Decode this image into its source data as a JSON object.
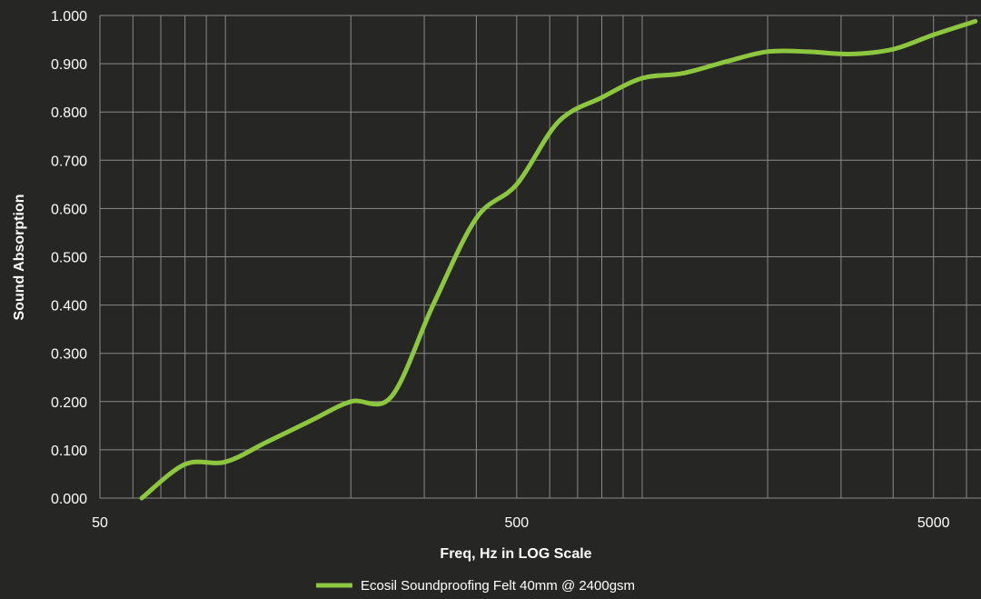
{
  "chart_data": {
    "type": "line",
    "title": "",
    "xlabel": "Freq, Hz in LOG Scale",
    "ylabel": "Sound Absorption",
    "x_scale": "log",
    "xlim": [
      50,
      6500
    ],
    "ylim": [
      0,
      1
    ],
    "x_tick_labels": [
      "50",
      "500",
      "5000"
    ],
    "y_tick_labels": [
      "0.000",
      "0.100",
      "0.200",
      "0.300",
      "0.400",
      "0.500",
      "0.600",
      "0.700",
      "0.800",
      "0.900",
      "1.000"
    ],
    "grid": true,
    "legend_position": "bottom",
    "colors": {
      "background": "#262624",
      "grid": "#8a8a86",
      "series": "#8dc63f",
      "text": "#ffffff"
    },
    "series": [
      {
        "name": "Ecosil Soundproofing Felt 40mm @ 2400gsm",
        "x": [
          63,
          80,
          100,
          125,
          160,
          200,
          250,
          315,
          400,
          500,
          630,
          800,
          1000,
          1250,
          1600,
          2000,
          2500,
          3150,
          4000,
          5000,
          6300
        ],
        "y": [
          0.0,
          0.07,
          0.075,
          0.115,
          0.16,
          0.2,
          0.21,
          0.4,
          0.58,
          0.65,
          0.78,
          0.83,
          0.87,
          0.88,
          0.905,
          0.925,
          0.925,
          0.92,
          0.93,
          0.96,
          0.988
        ]
      }
    ]
  }
}
